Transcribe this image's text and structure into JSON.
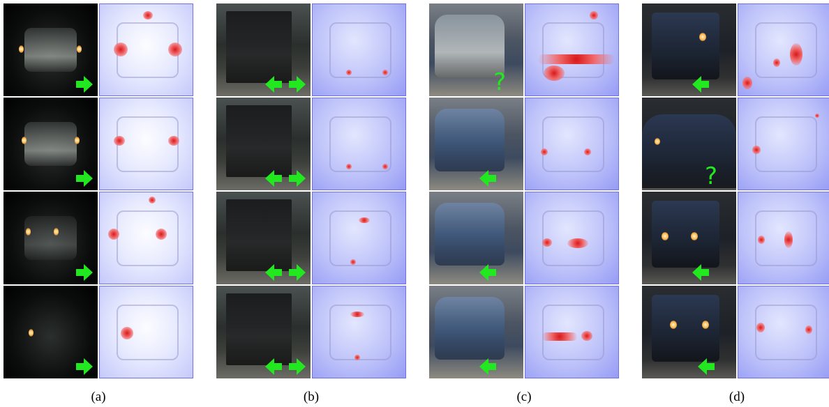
{
  "figure": {
    "panels": [
      {
        "id": "a",
        "caption": "(a)",
        "rows": [
          {
            "orig_scene": "taillights-night",
            "arrows": [
              "right"
            ],
            "question": false
          },
          {
            "orig_scene": "taillights-night",
            "arrows": [
              "right"
            ],
            "question": false
          },
          {
            "orig_scene": "taillights-night",
            "arrows": [
              "right"
            ],
            "question": false
          },
          {
            "orig_scene": "taillights-night",
            "arrows": [
              "right"
            ],
            "question": false
          }
        ]
      },
      {
        "id": "b",
        "caption": "(b)",
        "rows": [
          {
            "orig_scene": "truck-rear",
            "arrows": [
              "left",
              "right"
            ],
            "question": false
          },
          {
            "orig_scene": "truck-rear",
            "arrows": [
              "left",
              "right"
            ],
            "question": false
          },
          {
            "orig_scene": "truck-rear",
            "arrows": [
              "left",
              "right"
            ],
            "question": false
          },
          {
            "orig_scene": "truck-rear",
            "arrows": [
              "left",
              "right"
            ],
            "question": false
          }
        ]
      },
      {
        "id": "c",
        "caption": "(c)",
        "rows": [
          {
            "orig_scene": "car-rear",
            "arrows": [],
            "question": true
          },
          {
            "orig_scene": "minivan-front",
            "arrows": [
              "left"
            ],
            "question": false
          },
          {
            "orig_scene": "minivan-front",
            "arrows": [
              "left"
            ],
            "question": false
          },
          {
            "orig_scene": "minivan-front",
            "arrows": [
              "left"
            ],
            "question": false
          }
        ]
      },
      {
        "id": "d",
        "caption": "(d)",
        "rows": [
          {
            "orig_scene": "jeep-front",
            "arrows": [
              "left"
            ],
            "question": false
          },
          {
            "orig_scene": "windshield",
            "arrows": [],
            "question": true
          },
          {
            "orig_scene": "jeep-front",
            "arrows": [
              "left"
            ],
            "question": false
          },
          {
            "orig_scene": "jeep-front",
            "arrows": [
              "left"
            ],
            "question": false
          }
        ]
      }
    ],
    "colors": {
      "arrow": "#22e81f",
      "heat_border": "#6f72e6",
      "hotspot": "#d8191b"
    },
    "icons": {
      "right": "right-arrow-icon",
      "left": "left-arrow-icon",
      "question": "question-mark-icon"
    },
    "question_glyph": "?"
  }
}
